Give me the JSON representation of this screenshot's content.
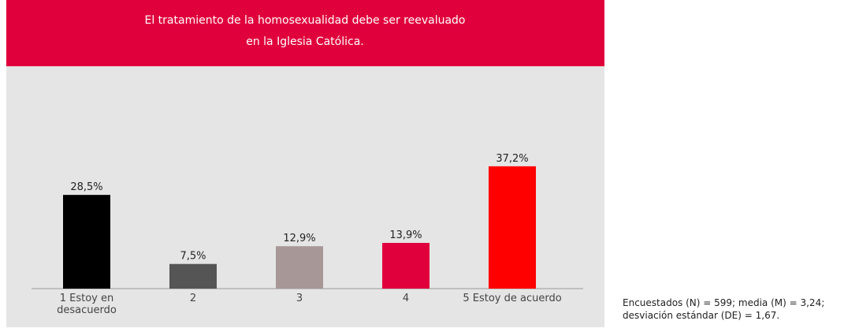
{
  "chart_data": {
    "type": "bar",
    "title": [
      "El tratamiento de la homosexualidad debe ser reevaluado",
      "en la Iglesia Católica."
    ],
    "categories": [
      "1 Estoy en desacuerdo",
      "2",
      "3",
      "4",
      "5 Estoy de acuerdo"
    ],
    "values": [
      28.5,
      7.5,
      12.9,
      13.9,
      37.2
    ],
    "value_labels": [
      "28,5%",
      "7,5%",
      "12,9%",
      "13,9%",
      "37,2%"
    ],
    "colors": [
      "#000000",
      "#555555",
      "#a89797",
      "#e0003c",
      "#ff0000"
    ],
    "note": "Encuestados (N) = 599; media (M) = 3,24; desviación estándar (DE) = 1,67."
  }
}
